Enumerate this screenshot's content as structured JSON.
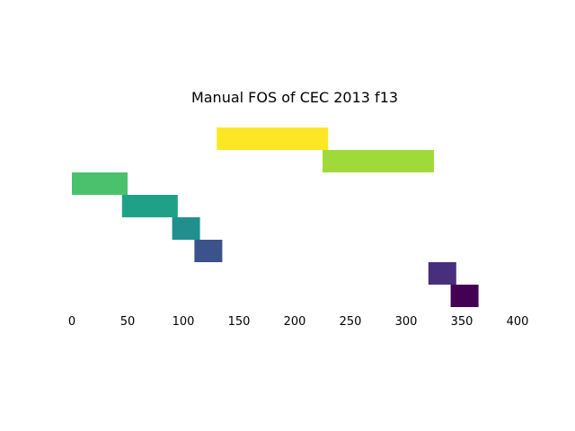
{
  "chart_data": {
    "type": "bar",
    "orientation": "horizontal-range",
    "title": "Manual FOS of CEC 2013 f13",
    "xlabel": "",
    "ylabel": "",
    "xlim": [
      0,
      400
    ],
    "xticks": [
      0,
      50,
      100,
      150,
      200,
      250,
      300,
      350,
      400
    ],
    "grid": false,
    "frame": false,
    "bars": [
      {
        "start": 340,
        "end": 365,
        "color": "#440154"
      },
      {
        "start": 320,
        "end": 345,
        "color": "#472f7d"
      },
      {
        "start": 110,
        "end": 135,
        "color": "#3b528b"
      },
      {
        "start": 90,
        "end": 115,
        "color": "#21908d"
      },
      {
        "start": 45,
        "end": 95,
        "color": "#1fa187"
      },
      {
        "start": 0,
        "end": 50,
        "color": "#4ac16d"
      },
      {
        "start": 225,
        "end": 325,
        "color": "#a0da39"
      },
      {
        "start": 130,
        "end": 230,
        "color": "#fde725"
      }
    ]
  }
}
